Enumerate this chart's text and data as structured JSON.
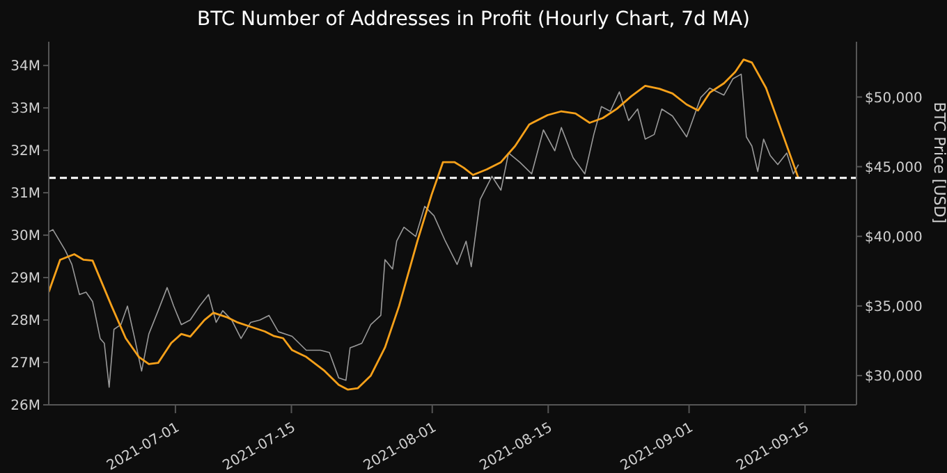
{
  "chart_data": {
    "type": "line",
    "title": "BTC Number of Addresses in Profit (Hourly Chart, 7d MA)",
    "y2label": "BTC Price [USD]",
    "xlim": [
      "2021-06-15T17:00",
      "2021-09-21T05:00"
    ],
    "xticks": [
      {
        "value": "2021-07-01",
        "label": "2021-07-01"
      },
      {
        "value": "2021-07-15",
        "label": "2021-07-15"
      },
      {
        "value": "2021-08-01",
        "label": "2021-08-01"
      },
      {
        "value": "2021-08-15",
        "label": "2021-08-15"
      },
      {
        "value": "2021-09-01",
        "label": "2021-09-01"
      },
      {
        "value": "2021-09-15",
        "label": "2021-09-15"
      }
    ],
    "ylim": [
      26,
      34.56
    ],
    "yticks": [
      {
        "value": 26,
        "label": "26M"
      },
      {
        "value": 27,
        "label": "27M"
      },
      {
        "value": 28,
        "label": "28M"
      },
      {
        "value": 29,
        "label": "29M"
      },
      {
        "value": 30,
        "label": "30M"
      },
      {
        "value": 31,
        "label": "31M"
      },
      {
        "value": 32,
        "label": "32M"
      },
      {
        "value": 33,
        "label": "33M"
      },
      {
        "value": 34,
        "label": "34M"
      }
    ],
    "y2lim": [
      27900,
      53970
    ],
    "y2ticks": [
      {
        "value": 30000,
        "label": "$30,000"
      },
      {
        "value": 35000,
        "label": "$35,000"
      },
      {
        "value": 40000,
        "label": "$40,000"
      },
      {
        "value": 45000,
        "label": "$45,000"
      },
      {
        "value": 50000,
        "label": "$50,000"
      }
    ],
    "grid": false,
    "ref_lines": [
      {
        "axis": "y",
        "value": 31.35,
        "color": "#ffffff",
        "line_style": "dashed"
      }
    ],
    "series": [
      {
        "axis": "y2",
        "color": "#9a9a9a",
        "x": [
          "2021-06-15T17:00",
          "2021-06-16T05:00",
          "2021-06-17T17:00",
          "2021-06-18T12:00",
          "2021-06-19T10:00",
          "2021-06-20T05:00",
          "2021-06-21T00:00",
          "2021-06-21T22:00",
          "2021-06-22T10:00",
          "2021-06-23T00:00",
          "2021-06-23T14:00",
          "2021-06-24T10:00",
          "2021-06-25T05:00",
          "2021-06-26T02:00",
          "2021-06-26T22:00",
          "2021-06-27T19:00",
          "2021-06-28T22:00",
          "2021-06-30T00:00",
          "2021-06-30T19:00",
          "2021-07-01T17:00",
          "2021-07-02T19:00",
          "2021-07-03T22:00",
          "2021-07-05T00:00",
          "2021-07-05T22:00",
          "2021-07-06T17:00",
          "2021-07-07T19:00",
          "2021-07-08T22:00",
          "2021-07-10T02:00",
          "2021-07-11T05:00",
          "2021-07-12T07:00",
          "2021-07-13T10:00",
          "2021-07-15T02:00",
          "2021-07-16T19:00",
          "2021-07-18T12:00",
          "2021-07-19T14:00",
          "2021-07-20T17:00",
          "2021-07-21T14:00",
          "2021-07-22T02:00",
          "2021-07-23T12:00",
          "2021-07-24T14:00",
          "2021-07-25T19:00",
          "2021-07-26T07:00",
          "2021-07-27T05:00",
          "2021-07-27T17:00",
          "2021-07-28T14:00",
          "2021-07-30T00:00",
          "2021-07-31T02:00",
          "2021-08-01T05:00",
          "2021-08-02T14:00",
          "2021-08-04T00:00",
          "2021-08-05T02:00",
          "2021-08-05T17:00",
          "2021-08-06T19:00",
          "2021-08-08T05:00",
          "2021-08-09T07:00",
          "2021-08-10T05:00",
          "2021-08-11T14:00",
          "2021-08-13T00:00",
          "2021-08-14T10:00",
          "2021-08-15T19:00",
          "2021-08-16T14:00",
          "2021-08-18T00:00",
          "2021-08-19T10:00",
          "2021-08-20T12:00",
          "2021-08-21T10:00",
          "2021-08-22T12:00",
          "2021-08-23T14:00",
          "2021-08-24T17:00",
          "2021-08-25T19:00",
          "2021-08-26T17:00",
          "2021-08-27T19:00",
          "2021-08-28T17:00",
          "2021-08-30T00:00",
          "2021-08-31T17:00",
          "2021-09-02T10:00",
          "2021-09-03T12:00",
          "2021-09-05T05:00",
          "2021-09-06T07:00",
          "2021-09-07T07:00",
          "2021-09-07T22:00",
          "2021-09-08T14:00",
          "2021-09-09T07:00",
          "2021-09-10T00:00",
          "2021-09-10T19:00",
          "2021-09-11T17:00",
          "2021-09-12T19:00",
          "2021-09-13T14:00",
          "2021-09-14T05:00"
        ],
        "values": [
          40320,
          40480,
          38980,
          37980,
          35820,
          35990,
          35320,
          32660,
          32320,
          29160,
          33320,
          33660,
          34990,
          32660,
          30330,
          32990,
          34660,
          36320,
          34990,
          33660,
          33990,
          34990,
          35820,
          33820,
          34660,
          33990,
          32660,
          33820,
          33990,
          34320,
          33150,
          32820,
          31820,
          31820,
          31660,
          29830,
          29660,
          31990,
          32320,
          33660,
          34320,
          38320,
          37650,
          39650,
          40650,
          39990,
          42150,
          41480,
          39650,
          37980,
          39650,
          37820,
          42650,
          44310,
          43310,
          45980,
          45310,
          44480,
          47640,
          46140,
          47810,
          45640,
          44480,
          47310,
          49310,
          48980,
          50370,
          48310,
          49140,
          46980,
          47310,
          49140,
          48640,
          47140,
          49970,
          50640,
          50140,
          51310,
          51640,
          47140,
          46480,
          44650,
          46980,
          45810,
          45150,
          45980,
          44480,
          45150
        ]
      },
      {
        "axis": "y",
        "color": "#f7a11a",
        "x": [
          "2021-06-15T17:00",
          "2021-06-17T02:00",
          "2021-06-18T19:00",
          "2021-06-19T22:00",
          "2021-06-21T00:00",
          "2021-06-23T07:00",
          "2021-06-25T00:00",
          "2021-06-26T14:00",
          "2021-06-27T19:00",
          "2021-06-28T22:00",
          "2021-06-30T12:00",
          "2021-07-01T17:00",
          "2021-07-02T19:00",
          "2021-07-04T12:00",
          "2021-07-05T14:00",
          "2021-07-07T07:00",
          "2021-07-08T10:00",
          "2021-07-10T02:00",
          "2021-07-11T19:00",
          "2021-07-12T22:00",
          "2021-07-14T00:00",
          "2021-07-15T02:00",
          "2021-07-16T19:00",
          "2021-07-19T00:00",
          "2021-07-20T17:00",
          "2021-07-21T19:00",
          "2021-07-23T00:00",
          "2021-07-24T14:00",
          "2021-07-26T07:00",
          "2021-07-28T00:00",
          "2021-07-30T05:00",
          "2021-07-31T22:00",
          "2021-08-02T07:00",
          "2021-08-03T17:00",
          "2021-08-04T19:00",
          "2021-08-05T22:00",
          "2021-08-07T14:00",
          "2021-08-09T07:00",
          "2021-08-11T00:00",
          "2021-08-12T17:00",
          "2021-08-14T22:00",
          "2021-08-16T14:00",
          "2021-08-18T07:00",
          "2021-08-20T00:00",
          "2021-08-21T14:00",
          "2021-08-23T07:00",
          "2021-08-25T00:00",
          "2021-08-26T17:00",
          "2021-08-28T10:00",
          "2021-08-30T00:00",
          "2021-08-31T17:00",
          "2021-09-02T02:00",
          "2021-09-03T12:00",
          "2021-09-05T05:00",
          "2021-09-06T14:00",
          "2021-09-07T14:00",
          "2021-09-08T14:00",
          "2021-09-10T07:00",
          "2021-09-11T22:00",
          "2021-09-14T05:00"
        ],
        "values": [
          28.66,
          29.42,
          29.55,
          29.42,
          29.4,
          28.33,
          27.57,
          27.13,
          26.96,
          26.99,
          27.46,
          27.67,
          27.61,
          28.0,
          28.17,
          28.06,
          27.95,
          27.84,
          27.73,
          27.62,
          27.57,
          27.29,
          27.13,
          26.8,
          26.47,
          26.36,
          26.39,
          26.69,
          27.35,
          28.33,
          29.86,
          30.95,
          31.72,
          31.72,
          31.59,
          31.42,
          31.55,
          31.72,
          32.1,
          32.61,
          32.83,
          32.92,
          32.87,
          32.65,
          32.76,
          32.98,
          33.27,
          33.52,
          33.45,
          33.34,
          33.08,
          32.94,
          33.36,
          33.58,
          33.85,
          34.14,
          34.07,
          33.47,
          32.59,
          31.34
        ]
      }
    ]
  }
}
